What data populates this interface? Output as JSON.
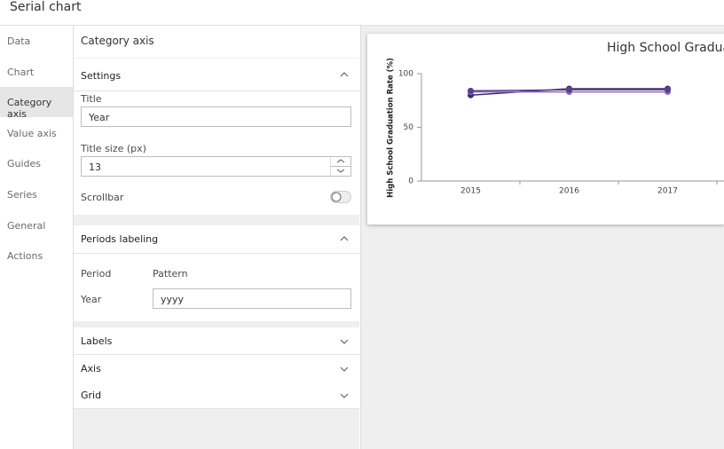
{
  "header": {
    "title": "Serial chart"
  },
  "nav": {
    "items": [
      "Data",
      "Chart",
      "Category axis",
      "Value axis",
      "Guides",
      "Series",
      "General",
      "Actions"
    ]
  },
  "panel": {
    "title": "Category axis",
    "settings": {
      "title": "Settings",
      "title_label": "Title",
      "title_value": "Year",
      "size_label": "Title size (px)",
      "size_value": "13",
      "scrollbar_label": "Scrollbar"
    },
    "periods": {
      "title": "Periods labeling",
      "period_header": "Period",
      "pattern_header": "Pattern",
      "period": "Year",
      "pattern": "yyyy"
    },
    "collapsed": [
      "Labels",
      "Axis",
      "Grid"
    ]
  },
  "chart_data": {
    "type": "line",
    "title": "High School Gradua",
    "y_label": "High School Graduation Rate (%)",
    "categories": [
      "2015",
      "2016",
      "2017"
    ],
    "series": [
      {
        "color": "#3d2a6b",
        "values": [
          80,
          86,
          86
        ]
      },
      {
        "color": "#8e6bb8",
        "values": [
          83,
          83,
          83
        ]
      },
      {
        "color": "#5b3f8f",
        "values": [
          84,
          85,
          85
        ]
      }
    ],
    "ylim": [
      0,
      100
    ],
    "yticks": [
      0,
      50,
      100
    ]
  }
}
